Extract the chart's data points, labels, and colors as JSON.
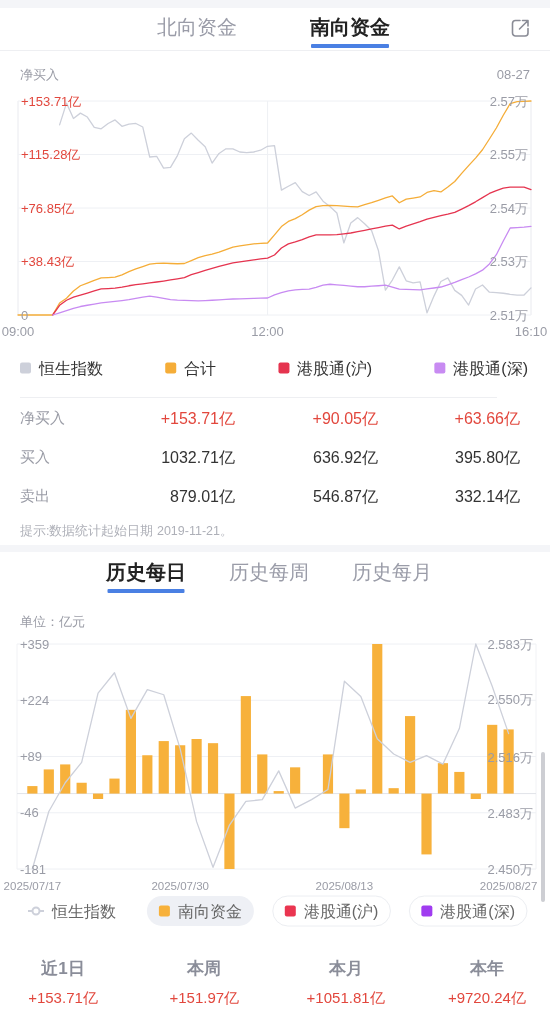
{
  "chart_data": [
    {
      "type": "other",
      "annotations": [
        "北向资金",
        "南向资金"
      ]
    },
    {
      "type": "line",
      "ylabel": "净买入",
      "annotations": [
        "08-27"
      ],
      "categories": [
        "09:00",
        null,
        null,
        null,
        null,
        null,
        null,
        null,
        null,
        null,
        null,
        null,
        null,
        null,
        null,
        null,
        null,
        null,
        null,
        null,
        null,
        null,
        null,
        null,
        null,
        null,
        null,
        null,
        null,
        null,
        null,
        null,
        null,
        null,
        null,
        null,
        "12:00",
        null,
        null,
        null,
        null,
        null,
        null,
        null,
        null,
        null,
        null,
        null,
        null,
        null,
        null,
        null,
        null,
        null,
        null,
        null,
        null,
        null,
        null,
        null,
        null,
        null,
        null,
        null,
        null,
        null,
        null,
        null,
        null,
        null,
        null,
        null,
        null,
        null,
        "16:10"
      ],
      "ylim": [
        0,
        153.71
      ],
      "yticks": [
        0,
        {
          "value": 38.43,
          "label": "+38.43亿"
        },
        {
          "value": 76.85,
          "label": "+76.85亿"
        },
        {
          "value": 115.28,
          "label": "+115.28亿"
        },
        {
          "value": 153.71,
          "label": "+153.71亿"
        }
      ],
      "y2lim": [
        2.51,
        2.57
      ],
      "y2ticks": [
        {
          "value": 2.51,
          "label": "2.51万"
        },
        {
          "value": 2.525,
          "label": "2.53万"
        },
        {
          "value": 2.54,
          "label": "2.54万"
        },
        {
          "value": 2.555,
          "label": "2.55万"
        },
        {
          "value": 2.57,
          "label": "2.57万"
        }
      ],
      "grid": true,
      "legend": "bottom",
      "series": [
        {
          "name": "恒生指数",
          "color": "#cdd0da",
          "axis": "y2",
          "values": [
            null,
            null,
            null,
            null,
            null,
            null,
            2.5633,
            2.5694,
            2.5651,
            2.5666,
            2.5655,
            2.5626,
            2.5622,
            2.5637,
            2.5647,
            2.5629,
            2.5635,
            2.5637,
            2.5627,
            2.5543,
            2.5545,
            2.5512,
            2.5514,
            2.5547,
            2.5594,
            2.561,
            2.559,
            2.5572,
            2.5526,
            2.5553,
            2.5566,
            2.5566,
            2.5557,
            2.5555,
            2.5557,
            2.5562,
            2.5573,
            2.5575,
            2.545,
            2.5461,
            2.5471,
            2.5446,
            2.5435,
            2.5445,
            2.5419,
            2.5404,
            2.5386,
            2.5302,
            2.5358,
            2.5373,
            2.5356,
            2.5337,
            2.528,
            2.517,
            2.5198,
            2.5235,
            2.5196,
            2.519,
            2.5193,
            2.5106,
            2.5153,
            2.5194,
            2.5204,
            2.5169,
            2.5155,
            2.5128,
            2.5173,
            2.5184,
            2.5164,
            2.5163,
            2.5161,
            2.5158,
            2.5156,
            2.5156,
            2.5176
          ]
        },
        {
          "name": "合计",
          "color": "#f5ad38",
          "values": [
            0,
            0,
            0,
            0,
            0,
            0,
            8.6,
            12.0,
            17.2,
            21.0,
            22.9,
            24.9,
            26.6,
            26.9,
            27.2,
            28.8,
            31.1,
            33.1,
            34.8,
            36.5,
            37.1,
            37.3,
            37.0,
            36.8,
            37.0,
            39.1,
            41.2,
            42.6,
            43.7,
            45.1,
            47.0,
            48.8,
            49.6,
            50.4,
            51.1,
            51.4,
            51.7,
            57.5,
            63.5,
            67.2,
            69.2,
            72.0,
            75.3,
            77.8,
            78.6,
            78.8,
            78.5,
            78.2,
            77.9,
            77.7,
            79.2,
            80.7,
            82.4,
            84.1,
            85.5,
            80.6,
            83.2,
            84.0,
            84.8,
            88.0,
            89.3,
            88.4,
            91.9,
            95.9,
            101.7,
            107.3,
            112.7,
            118.7,
            126.4,
            134.3,
            143.5,
            151.9,
            153.2,
            153.5,
            153.7
          ]
        },
        {
          "name": "港股通(沪)",
          "color": "#e5344f",
          "values": [
            null,
            null,
            null,
            null,
            null,
            0,
            7.0,
            10.6,
            12.8,
            14.3,
            15.8,
            17.3,
            18.7,
            19.0,
            19.3,
            20.0,
            21.0,
            21.8,
            22.4,
            23.0,
            23.7,
            24.4,
            25.2,
            26.0,
            26.9,
            29.0,
            30.5,
            32.1,
            33.5,
            34.9,
            36.2,
            37.4,
            38.2,
            38.9,
            39.6,
            40.3,
            40.9,
            43.1,
            48.1,
            51.1,
            52.5,
            54.2,
            56.1,
            57.5,
            57.5,
            57.5,
            57.7,
            58.3,
            58.9,
            59.9,
            60.8,
            61.8,
            62.8,
            63.8,
            64.6,
            61.8,
            63.9,
            65.4,
            67.0,
            68.8,
            70.1,
            71.3,
            72.4,
            73.7,
            76.1,
            78.6,
            81.3,
            84.3,
            87.3,
            89.4,
            91.2,
            91.9,
            91.9,
            91.9,
            90.1
          ]
        },
        {
          "name": "港股通(深)",
          "color": "#c88bf2",
          "values": [
            null,
            null,
            null,
            null,
            null,
            0,
            1.5,
            3.1,
            4.8,
            6.1,
            7.0,
            7.8,
            8.7,
            9.3,
            9.8,
            10.4,
            11.0,
            12.0,
            12.9,
            13.6,
            12.8,
            12.0,
            11.1,
            10.7,
            10.5,
            10.3,
            10.1,
            10.3,
            10.6,
            10.9,
            11.2,
            11.5,
            11.6,
            11.8,
            11.9,
            12.1,
            12.2,
            14.4,
            16.0,
            17.4,
            18.1,
            18.4,
            18.6,
            19.8,
            21.4,
            22.1,
            21.7,
            21.3,
            20.8,
            20.3,
            20.3,
            20.7,
            21.0,
            21.4,
            20.0,
            18.6,
            18.4,
            18.2,
            18.0,
            18.7,
            19.4,
            20.1,
            21.7,
            23.4,
            25.4,
            27.3,
            29.5,
            32.2,
            36.7,
            43.3,
            53.2,
            62.5,
            62.8,
            63.1,
            63.7
          ]
        }
      ]
    },
    {
      "type": "other",
      "annotations": [
        "净买入",
        "+153.71亿",
        "+90.05亿",
        "+63.66亿",
        "买入",
        "1032.71亿",
        "636.92亿",
        "395.80亿",
        "卖出",
        "879.01亿",
        "546.87亿",
        "332.14亿",
        "提示:数据统计起始日期 2019-11-21。"
      ]
    },
    {
      "type": "other",
      "annotations": [
        "历史每日",
        "历史每周",
        "历史每月"
      ]
    },
    {
      "type": "bar",
      "ylabel": "单位：亿元",
      "categories": [
        "2025/07/17",
        null,
        null,
        null,
        null,
        null,
        null,
        null,
        null,
        "2025/07/30",
        null,
        null,
        null,
        null,
        null,
        null,
        null,
        null,
        null,
        "2025/08/13",
        null,
        null,
        null,
        null,
        null,
        null,
        null,
        null,
        null,
        "2025/08/27"
      ],
      "ylim": [
        -181,
        359
      ],
      "yticks": [
        -181,
        -46,
        {
          "value": 89,
          "label": "+89"
        },
        {
          "value": 224,
          "label": "+224"
        },
        {
          "value": 359,
          "label": "+359"
        }
      ],
      "y2lim": [
        2.45,
        2.583
      ],
      "y2ticks": [
        {
          "value": 2.45,
          "label": "2.450万"
        },
        {
          "value": 2.483,
          "label": "2.483万"
        },
        {
          "value": 2.516,
          "label": "2.516万"
        },
        {
          "value": 2.55,
          "label": "2.550万"
        },
        {
          "value": 2.583,
          "label": "2.583万"
        }
      ],
      "grid": "y",
      "legend": "bottom",
      "series": [
        {
          "name": "恒生指数",
          "type": "line",
          "axis": "y2",
          "color": "#cdd0da",
          "values": [
            2.45,
            2.484,
            2.501,
            2.513,
            2.554,
            2.566,
            2.539,
            2.556,
            2.553,
            2.521,
            2.478,
            2.451,
            2.476,
            2.49,
            2.491,
            2.508,
            2.486,
            2.491,
            2.497,
            2.561,
            2.552,
            2.527,
            2.518,
            2.513,
            2.517,
            2.512,
            2.533,
            2.583,
            2.558,
            2.53
          ]
        },
        {
          "name": "南向资金",
          "color": "#f7b13b",
          "values": [
            18,
            58,
            70,
            26,
            -13,
            36,
            201,
            92,
            126,
            116,
            131,
            121,
            -181,
            234,
            94,
            6,
            63,
            null,
            94,
            -83,
            10,
            359,
            13,
            186,
            -146,
            73,
            52,
            -13,
            165,
            154
          ]
        },
        {
          "name": "港股通(沪)",
          "color": "#ea3550",
          "values": [
            null,
            null,
            null,
            null,
            null,
            null,
            null,
            null,
            null,
            null,
            null,
            null,
            null,
            null,
            null,
            null,
            null,
            null,
            null,
            null,
            null,
            null,
            null,
            null,
            null,
            null,
            null,
            null,
            null,
            null
          ]
        },
        {
          "name": "港股通(深)",
          "color": "#a03cf0",
          "values": [
            null,
            null,
            null,
            null,
            null,
            null,
            null,
            null,
            null,
            null,
            null,
            null,
            null,
            null,
            null,
            null,
            null,
            null,
            null,
            null,
            null,
            null,
            null,
            null,
            null,
            null,
            null,
            null,
            null,
            null
          ]
        }
      ]
    },
    {
      "type": "other",
      "annotations": [
        "近1日",
        "+153.71亿",
        "本周",
        "+151.97亿",
        "本月",
        "+1051.81亿",
        "本年",
        "+9720.24亿"
      ]
    }
  ]
}
